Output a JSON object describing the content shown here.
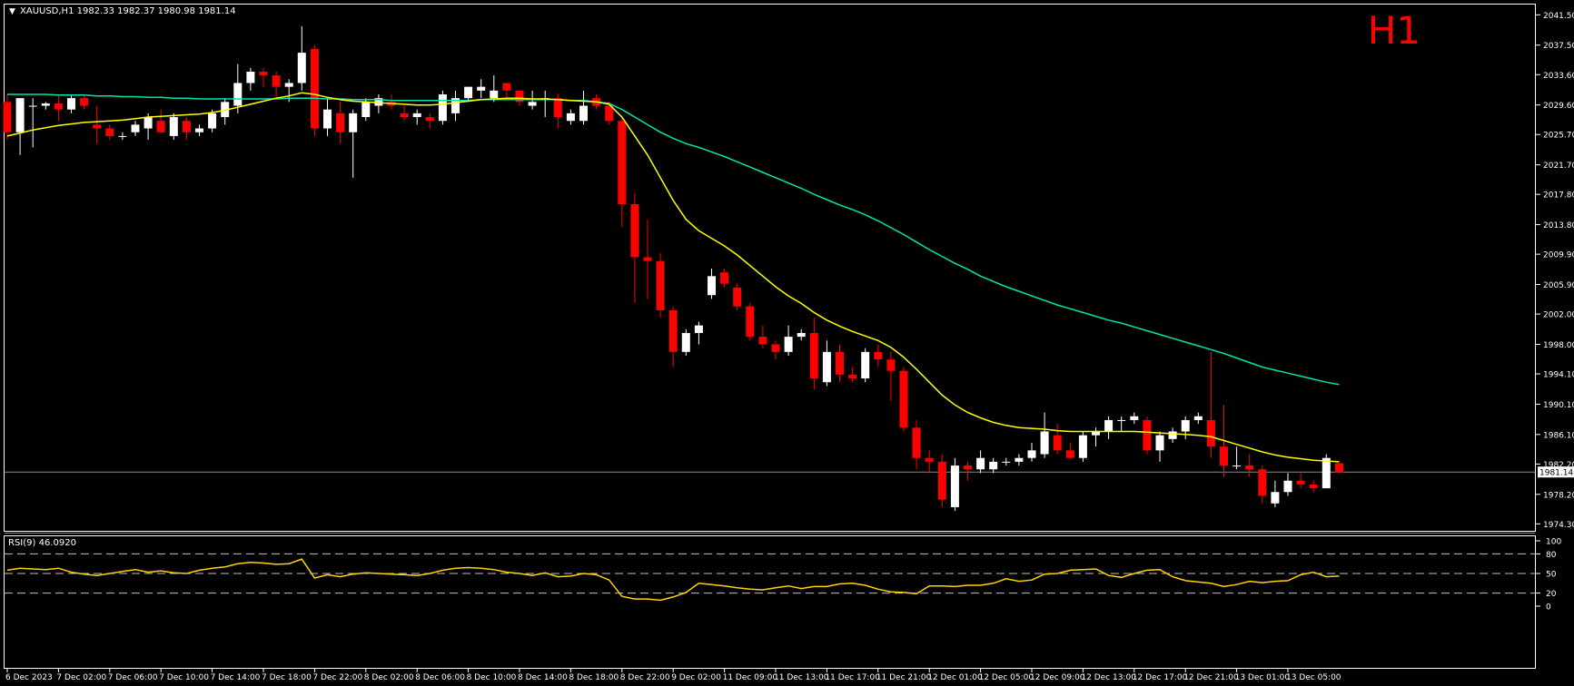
{
  "main_panel": {
    "header_arrow": "▼",
    "header_label": "XAUUSD,H1  1982.33 1982.37 1980.98 1981.14",
    "timeframe_badge": "H1",
    "current_price_label": "1981.14"
  },
  "rsi_panel": {
    "header_label": "RSI(9) 46.0920"
  },
  "colors": {
    "background": "#000000",
    "bull_candle": "#ffffff",
    "bear_candle": "#ff0000",
    "ma_fast": "#ffff00",
    "ma_slow": "#00e5b0",
    "rsi_line": "#ffd400",
    "axis_text": "#ffffff",
    "badge": "#ff0000",
    "panel_border": "#ffffff"
  },
  "chart_data": [
    {
      "type": "candlestick",
      "symbol": "XAUUSD",
      "timeframe": "H1",
      "y_ticks": [
        "2041.50",
        "2037.50",
        "2033.60",
        "2029.60",
        "2025.70",
        "2021.70",
        "2017.80",
        "2013.80",
        "2009.90",
        "2005.90",
        "2002.00",
        "1998.00",
        "1994.10",
        "1990.10",
        "1986.10",
        "1982.20",
        "1978.20",
        "1974.30"
      ],
      "ylim": [
        1973.5,
        2042.5
      ],
      "x_ticks": [
        {
          "label": "6 Dec 2023",
          "i": 0
        },
        {
          "label": "7 Dec 02:00",
          "i": 4
        },
        {
          "label": "7 Dec 06:00",
          "i": 8
        },
        {
          "label": "7 Dec 10:00",
          "i": 12
        },
        {
          "label": "7 Dec 14:00",
          "i": 16
        },
        {
          "label": "7 Dec 18:00",
          "i": 20
        },
        {
          "label": "7 Dec 22:00",
          "i": 24
        },
        {
          "label": "8 Dec 02:00",
          "i": 28
        },
        {
          "label": "8 Dec 06:00",
          "i": 32
        },
        {
          "label": "8 Dec 10:00",
          "i": 36
        },
        {
          "label": "8 Dec 14:00",
          "i": 40
        },
        {
          "label": "8 Dec 18:00",
          "i": 44
        },
        {
          "label": "8 Dec 22:00",
          "i": 48
        },
        {
          "label": "9 Dec 02:00",
          "i": 52
        },
        {
          "label": "11 Dec 09:00",
          "i": 56
        },
        {
          "label": "11 Dec 13:00",
          "i": 60
        },
        {
          "label": "11 Dec 17:00",
          "i": 64
        },
        {
          "label": "11 Dec 21:00",
          "i": 68
        },
        {
          "label": "12 Dec 01:00",
          "i": 72
        },
        {
          "label": "12 Dec 05:00",
          "i": 76
        },
        {
          "label": "12 Dec 09:00",
          "i": 80
        },
        {
          "label": "12 Dec 13:00",
          "i": 84
        },
        {
          "label": "12 Dec 17:00",
          "i": 88
        },
        {
          "label": "12 Dec 21:00",
          "i": 92
        },
        {
          "label": "13 Dec 01:00",
          "i": 96
        },
        {
          "label": "13 Dec 05:00",
          "i": 100
        }
      ],
      "current_price": 1981.14,
      "candles": [
        [
          2030.0,
          2031.0,
          2025.0,
          2026.0
        ],
        [
          2026.0,
          2030.5,
          2023.0,
          2030.5
        ],
        [
          2029.5,
          2030.5,
          2024.0,
          2029.5
        ],
        [
          2029.5,
          2030.0,
          2029.0,
          2029.8
        ],
        [
          2029.8,
          2031.0,
          2027.5,
          2029.0
        ],
        [
          2029.0,
          2030.8,
          2028.5,
          2030.5
        ],
        [
          2030.5,
          2030.8,
          2029.0,
          2029.5
        ],
        [
          2027.0,
          2029.5,
          2024.5,
          2026.5
        ],
        [
          2026.5,
          2027.0,
          2025.0,
          2025.5
        ],
        [
          2025.5,
          2026.0,
          2025.0,
          2025.5
        ],
        [
          2026.0,
          2027.5,
          2025.5,
          2027.0
        ],
        [
          2026.5,
          2028.5,
          2025.0,
          2028.0
        ],
        [
          2027.5,
          2029.0,
          2026.0,
          2026.0
        ],
        [
          2025.5,
          2028.5,
          2025.0,
          2028.0
        ],
        [
          2027.5,
          2028.0,
          2025.0,
          2026.0
        ],
        [
          2026.0,
          2027.0,
          2025.5,
          2026.5
        ],
        [
          2026.5,
          2029.0,
          2026.0,
          2028.5
        ],
        [
          2028.0,
          2030.5,
          2027.0,
          2030.0
        ],
        [
          2029.5,
          2035.0,
          2028.5,
          2032.5
        ],
        [
          2032.5,
          2034.5,
          2031.5,
          2034.0
        ],
        [
          2034.0,
          2034.5,
          2032.0,
          2033.5
        ],
        [
          2033.5,
          2034.0,
          2030.5,
          2032.0
        ],
        [
          2032.0,
          2033.0,
          2030.0,
          2032.5
        ],
        [
          2032.5,
          2040.0,
          2031.5,
          2036.5
        ],
        [
          2037.0,
          2037.5,
          2025.5,
          2026.5
        ],
        [
          2026.5,
          2030.5,
          2025.5,
          2029.0
        ],
        [
          2028.5,
          2030.0,
          2024.5,
          2026.0
        ],
        [
          2026.0,
          2029.0,
          2020.0,
          2028.5
        ],
        [
          2028.0,
          2030.5,
          2027.5,
          2030.0
        ],
        [
          2029.5,
          2031.0,
          2028.5,
          2030.5
        ],
        [
          2030.0,
          2031.0,
          2029.0,
          2029.5
        ],
        [
          2028.5,
          2029.5,
          2027.5,
          2028.0
        ],
        [
          2028.0,
          2029.0,
          2027.0,
          2028.5
        ],
        [
          2028.0,
          2028.5,
          2026.5,
          2027.5
        ],
        [
          2027.5,
          2031.5,
          2027.0,
          2031.0
        ],
        [
          2028.5,
          2031.5,
          2027.5,
          2030.5
        ],
        [
          2030.5,
          2032.0,
          2030.0,
          2032.0
        ],
        [
          2031.5,
          2033.0,
          2030.5,
          2032.0
        ],
        [
          2030.5,
          2033.5,
          2030.0,
          2031.5
        ],
        [
          2032.5,
          2032.5,
          2030.5,
          2031.5
        ],
        [
          2031.5,
          2031.5,
          2029.5,
          2030.0
        ],
        [
          2029.5,
          2031.5,
          2029.0,
          2030.0
        ],
        [
          2030.5,
          2031.5,
          2028.0,
          2030.5
        ],
        [
          2030.5,
          2031.0,
          2026.5,
          2028.0
        ],
        [
          2027.5,
          2029.0,
          2027.0,
          2028.5
        ],
        [
          2027.5,
          2031.5,
          2027.0,
          2029.5
        ],
        [
          2030.5,
          2031.0,
          2029.0,
          2029.5
        ],
        [
          2029.5,
          2030.0,
          2027.0,
          2027.5
        ],
        [
          2027.5,
          2028.0,
          2013.5,
          2016.5
        ],
        [
          2016.5,
          2018.0,
          2003.5,
          2009.5
        ],
        [
          2009.5,
          2014.5,
          2004.0,
          2009.0
        ],
        [
          2009.0,
          2010.0,
          2001.5,
          2002.5
        ],
        [
          2002.5,
          2003.0,
          1995.0,
          1997.0
        ],
        [
          1997.0,
          2000.0,
          1996.5,
          1999.5
        ],
        [
          1999.5,
          2001.0,
          1998.0,
          2000.5
        ],
        [
          2004.5,
          2008.0,
          2004.0,
          2007.0
        ],
        [
          2007.5,
          2008.0,
          2005.5,
          2006.0
        ],
        [
          2005.5,
          2006.0,
          2002.5,
          2003.0
        ],
        [
          2003.0,
          2003.5,
          1998.5,
          1999.0
        ],
        [
          1999.0,
          2000.5,
          1997.5,
          1998.0
        ],
        [
          1998.0,
          1998.5,
          1996.0,
          1997.0
        ],
        [
          1997.0,
          2000.5,
          1996.5,
          1999.0
        ],
        [
          1999.0,
          2000.0,
          1998.5,
          1999.5
        ],
        [
          1999.5,
          2001.5,
          1992.0,
          1993.5
        ],
        [
          1993.0,
          1998.5,
          1992.5,
          1997.0
        ],
        [
          1997.0,
          1998.0,
          1993.0,
          1994.0
        ],
        [
          1994.0,
          1995.0,
          1993.0,
          1993.5
        ],
        [
          1993.5,
          1997.5,
          1993.0,
          1997.0
        ],
        [
          1997.0,
          1998.0,
          1995.0,
          1996.0
        ],
        [
          1996.0,
          1997.0,
          1990.5,
          1994.5
        ],
        [
          1994.5,
          1995.0,
          1986.5,
          1987.0
        ],
        [
          1987.0,
          1988.0,
          1981.5,
          1983.0
        ],
        [
          1983.0,
          1984.0,
          1981.0,
          1982.5
        ],
        [
          1982.5,
          1983.5,
          1976.5,
          1977.5
        ],
        [
          1976.5,
          1983.0,
          1976.0,
          1982.0
        ],
        [
          1982.0,
          1982.5,
          1980.0,
          1981.5
        ],
        [
          1981.5,
          1984.0,
          1981.0,
          1983.0
        ],
        [
          1981.5,
          1983.0,
          1981.0,
          1982.5
        ],
        [
          1982.5,
          1983.0,
          1982.0,
          1982.5
        ],
        [
          1982.5,
          1983.5,
          1982.0,
          1983.0
        ],
        [
          1983.0,
          1985.0,
          1982.5,
          1984.0
        ],
        [
          1983.5,
          1989.0,
          1983.0,
          1986.5
        ],
        [
          1986.0,
          1987.5,
          1983.5,
          1984.0
        ],
        [
          1984.0,
          1985.0,
          1983.0,
          1983.0
        ],
        [
          1983.0,
          1986.5,
          1982.5,
          1986.0
        ],
        [
          1986.0,
          1987.0,
          1984.5,
          1986.5
        ],
        [
          1986.5,
          1988.5,
          1985.5,
          1988.0
        ],
        [
          1988.0,
          1988.5,
          1986.5,
          1988.0
        ],
        [
          1988.0,
          1989.0,
          1987.5,
          1988.5
        ],
        [
          1988.0,
          1988.5,
          1983.5,
          1984.0
        ],
        [
          1984.0,
          1986.5,
          1982.5,
          1986.0
        ],
        [
          1985.5,
          1987.0,
          1985.0,
          1986.5
        ],
        [
          1986.5,
          1988.5,
          1985.5,
          1988.0
        ],
        [
          1988.0,
          1989.0,
          1987.5,
          1988.5
        ],
        [
          1988.0,
          1997.0,
          1983.0,
          1984.5
        ],
        [
          1984.5,
          1990.0,
          1980.5,
          1982.0
        ],
        [
          1982.0,
          1984.5,
          1981.5,
          1982.0
        ],
        [
          1982.0,
          1983.5,
          1980.5,
          1981.5
        ],
        [
          1981.5,
          1982.0,
          1977.0,
          1978.0
        ],
        [
          1977.0,
          1980.0,
          1976.5,
          1978.5
        ],
        [
          1978.5,
          1981.0,
          1978.0,
          1980.0
        ],
        [
          1980.0,
          1981.0,
          1979.0,
          1979.5
        ],
        [
          1979.5,
          1980.0,
          1978.5,
          1979.0
        ],
        [
          1979.0,
          1983.5,
          1979.0,
          1983.0
        ],
        [
          1982.3,
          1982.4,
          1981.0,
          1981.1
        ]
      ],
      "ma_fast": [
        2025.5,
        2025.9,
        2026.3,
        2026.6,
        2026.9,
        2027.1,
        2027.3,
        2027.4,
        2027.5,
        2027.6,
        2027.8,
        2028.0,
        2028.1,
        2028.2,
        2028.3,
        2028.4,
        2028.6,
        2028.9,
        2029.3,
        2029.7,
        2030.1,
        2030.5,
        2030.8,
        2031.2,
        2031.0,
        2030.6,
        2030.3,
        2030.1,
        2030.0,
        2029.9,
        2029.8,
        2029.7,
        2029.6,
        2029.6,
        2029.7,
        2029.9,
        2030.1,
        2030.3,
        2030.4,
        2030.5,
        2030.5,
        2030.4,
        2030.4,
        2030.3,
        2030.2,
        2030.1,
        2030.0,
        2029.7,
        2028.0,
        2025.5,
        2023.0,
        2020.0,
        2017.0,
        2014.5,
        2013.0,
        2012.0,
        2011.0,
        2009.8,
        2008.4,
        2007.0,
        2005.6,
        2004.4,
        2003.4,
        2002.2,
        2001.2,
        2000.4,
        1999.7,
        1999.1,
        1998.5,
        1997.6,
        1996.3,
        1994.7,
        1993.0,
        1991.3,
        1990.0,
        1989.0,
        1988.3,
        1987.7,
        1987.3,
        1987.0,
        1986.9,
        1986.8,
        1986.6,
        1986.5,
        1986.5,
        1986.5,
        1986.5,
        1986.5,
        1986.5,
        1986.4,
        1986.3,
        1986.2,
        1986.1,
        1986.0,
        1985.8,
        1985.3,
        1984.8,
        1984.3,
        1983.8,
        1983.4,
        1983.1,
        1982.9,
        1982.7,
        1982.6,
        1982.5
      ],
      "ma_slow": [
        2031.0,
        2031.0,
        2031.0,
        2031.0,
        2030.9,
        2030.9,
        2030.9,
        2030.8,
        2030.8,
        2030.7,
        2030.7,
        2030.6,
        2030.6,
        2030.5,
        2030.5,
        2030.4,
        2030.4,
        2030.4,
        2030.4,
        2030.4,
        2030.4,
        2030.4,
        2030.5,
        2030.5,
        2030.5,
        2030.4,
        2030.4,
        2030.3,
        2030.3,
        2030.3,
        2030.2,
        2030.2,
        2030.2,
        2030.2,
        2030.2,
        2030.2,
        2030.2,
        2030.3,
        2030.3,
        2030.3,
        2030.3,
        2030.3,
        2030.3,
        2030.3,
        2030.2,
        2030.2,
        2030.0,
        2029.8,
        2029.0,
        2028.0,
        2027.0,
        2026.0,
        2025.2,
        2024.5,
        2024.0,
        2023.4,
        2022.8,
        2022.1,
        2021.4,
        2020.7,
        2020.0,
        2019.3,
        2018.6,
        2017.8,
        2017.1,
        2016.4,
        2015.8,
        2015.1,
        2014.3,
        2013.4,
        2012.5,
        2011.5,
        2010.5,
        2009.6,
        2008.7,
        2007.9,
        2007.0,
        2006.3,
        2005.6,
        2005.0,
        2004.4,
        2003.8,
        2003.2,
        2002.7,
        2002.2,
        2001.7,
        2001.2,
        2000.8,
        2000.3,
        1999.8,
        1999.3,
        1998.8,
        1998.3,
        1997.8,
        1997.3,
        1996.8,
        1996.2,
        1995.6,
        1995.0,
        1994.6,
        1994.2,
        1993.8,
        1993.4,
        1993.0,
        1992.7
      ]
    },
    {
      "type": "line",
      "indicator": "RSI",
      "period": 9,
      "ylim": [
        0,
        100
      ],
      "y_ticks": [
        "100",
        "80",
        "50",
        "20",
        "0"
      ],
      "levels": [
        80,
        50,
        20
      ],
      "values": [
        55,
        58,
        57,
        56,
        58,
        52,
        49,
        47,
        50,
        53,
        56,
        52,
        54,
        51,
        50,
        55,
        58,
        60,
        65,
        67,
        66,
        64,
        65,
        72,
        43,
        48,
        45,
        49,
        51,
        50,
        49,
        48,
        47,
        50,
        55,
        58,
        59,
        58,
        56,
        52,
        50,
        47,
        51,
        45,
        46,
        50,
        48,
        40,
        15,
        11,
        11,
        9,
        14,
        21,
        35,
        33,
        31,
        28,
        26,
        25,
        28,
        31,
        27,
        30,
        30,
        34,
        35,
        32,
        26,
        22,
        21,
        19,
        31,
        31,
        30,
        32,
        32,
        35,
        42,
        38,
        40,
        49,
        50,
        55,
        56,
        57,
        47,
        44,
        50,
        55,
        56,
        45,
        39,
        37,
        35,
        30,
        33,
        38,
        36,
        38,
        39,
        48,
        52,
        45,
        46
      ]
    }
  ]
}
